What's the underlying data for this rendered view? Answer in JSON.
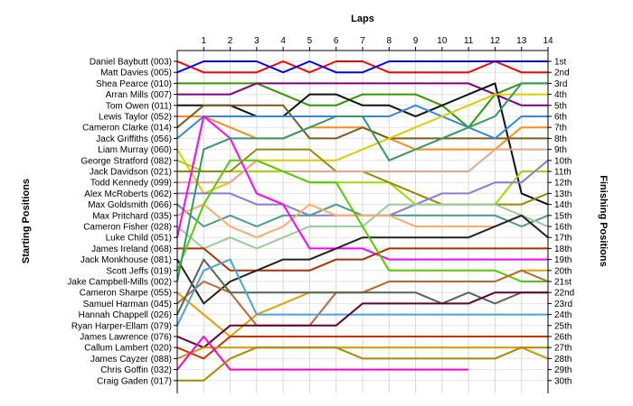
{
  "chart_data": {
    "type": "line",
    "xlabel": "Laps",
    "ylabel_left": "Starting Positions",
    "ylabel_right": "Finishing Positions",
    "laps": [
      1,
      2,
      3,
      4,
      5,
      6,
      7,
      8,
      9,
      10,
      11,
      12,
      13,
      14
    ],
    "finishing_labels": [
      "1st",
      "2nd",
      "3rd",
      "4th",
      "5th",
      "6th",
      "7th",
      "8th",
      "9th",
      "10th",
      "11th",
      "12th",
      "13th",
      "14th",
      "15th",
      "16th",
      "17th",
      "18th",
      "19th",
      "20th",
      "21st",
      "22nd",
      "23rd",
      "24th",
      "25th",
      "26th",
      "27th",
      "28th",
      "29th",
      "30th"
    ],
    "grid": true,
    "series": [
      {
        "name": "Daniel Baybutt (003)",
        "color": "#ff0000",
        "positions": [
          1,
          2,
          2,
          2,
          1,
          2,
          1,
          1,
          2,
          2,
          2,
          2,
          1,
          2,
          2
        ]
      },
      {
        "name": "Matt Davies (005)",
        "color": "#0000ff",
        "positions": [
          2,
          1,
          1,
          1,
          2,
          1,
          2,
          2,
          1,
          1,
          1,
          1,
          1,
          1,
          1
        ]
      },
      {
        "name": "Shea Pearce (010)",
        "color": "#339900",
        "positions": [
          3,
          3,
          3,
          3,
          4,
          5,
          5,
          4,
          4,
          4,
          5,
          7,
          4,
          3,
          3
        ]
      },
      {
        "name": "Arran Mills (007)",
        "color": "#800080",
        "positions": [
          4,
          4,
          4,
          3,
          3,
          3,
          3,
          3,
          3,
          3,
          3,
          3,
          4,
          5,
          5
        ]
      },
      {
        "name": "Tom Owen (011)",
        "color": "#111111",
        "positions": [
          5,
          5,
          5,
          6,
          6,
          4,
          4,
          5,
          5,
          6,
          5,
          4,
          3,
          13,
          14
        ]
      },
      {
        "name": "Lewis Taylor (052)",
        "color": "#ff8c1a",
        "positions": [
          6,
          6,
          7,
          8,
          8,
          7,
          7,
          7,
          8,
          9,
          9,
          9,
          9,
          7,
          7
        ]
      },
      {
        "name": "Cameron Clarke (014)",
        "color": "#7a5c1e",
        "positions": [
          7,
          5,
          5,
          5,
          5,
          8,
          8,
          7,
          8,
          8,
          8,
          8,
          8,
          8,
          8
        ]
      },
      {
        "name": "Jack Griffiths (056)",
        "color": "#3388dd",
        "positions": [
          8,
          6,
          6,
          6,
          6,
          6,
          6,
          6,
          6,
          5,
          6,
          7,
          8,
          6,
          6
        ]
      },
      {
        "name": "Liam Murray (060)",
        "color": "#ddcc00",
        "positions": [
          9,
          13,
          12,
          10,
          10,
          10,
          10,
          9,
          8,
          7,
          6,
          5,
          4,
          4,
          4
        ]
      },
      {
        "name": "George Stratford (082)",
        "color": "#99dd00",
        "positions": [
          10,
          11,
          11,
          11,
          11,
          12,
          12,
          12,
          12,
          14,
          14,
          14,
          14,
          11,
          11
        ]
      },
      {
        "name": "Jack Davidson (021)",
        "color": "#998800",
        "positions": [
          11,
          11,
          11,
          9,
          9,
          9,
          11,
          11,
          12,
          13,
          14,
          14,
          14,
          14,
          13
        ]
      },
      {
        "name": "Todd Kennedy (099)",
        "color": "#e8a38a",
        "positions": [
          12,
          12,
          12,
          10,
          11,
          11,
          11,
          11,
          11,
          11,
          11,
          11,
          9,
          9,
          9
        ]
      },
      {
        "name": "Alex McRoberts (062)",
        "color": "#8e7ad1",
        "positions": [
          13,
          13,
          13,
          14,
          14,
          15,
          15,
          15,
          15,
          14,
          13,
          13,
          12,
          12,
          10
        ]
      },
      {
        "name": "Max Goldsmith (066)",
        "color": "#4a9a8f",
        "positions": [
          14,
          16,
          15,
          16,
          15,
          15,
          14,
          15,
          15,
          15,
          15,
          15,
          15,
          16,
          15
        ]
      },
      {
        "name": "Max Pritchard (035)",
        "color": "#ffaa66",
        "positions": [
          15,
          14,
          16,
          17,
          16,
          14,
          15,
          15,
          15,
          16,
          16,
          16,
          16,
          15,
          16
        ]
      },
      {
        "name": "Cameron Fisher (028)",
        "color": "#9acc99",
        "positions": [
          16,
          18,
          17,
          18,
          17,
          16,
          16,
          16,
          14,
          14,
          14,
          14,
          14,
          15,
          16
        ]
      },
      {
        "name": "Luke Child (051)",
        "color": "#ff00ff",
        "positions": [
          17,
          6,
          8,
          13,
          14,
          18,
          18,
          18,
          19,
          19,
          19,
          19,
          19,
          19,
          19
        ]
      },
      {
        "name": "James Ireland (068)",
        "color": "#aa3300",
        "positions": [
          18,
          18,
          20,
          20,
          20,
          20,
          19,
          19,
          18,
          18,
          18,
          18,
          18,
          18,
          18
        ]
      },
      {
        "name": "Jack Monkhouse (081)",
        "color": "#222222",
        "positions": [
          19,
          23,
          21,
          20,
          19,
          19,
          18,
          17,
          17,
          17,
          17,
          17,
          16,
          15,
          17
        ]
      },
      {
        "name": "Scott Jeffs (019)",
        "color": "#55cc00",
        "positions": [
          20,
          14,
          10,
          10,
          11,
          12,
          12,
          16,
          20,
          20,
          20,
          20,
          20,
          21,
          21
        ]
      },
      {
        "name": "Jake Campbell-Mills (002)",
        "color": "#339966",
        "positions": [
          21,
          9,
          8,
          8,
          8,
          7,
          6,
          6,
          10,
          9,
          8,
          7,
          6,
          3,
          3
        ]
      },
      {
        "name": "Cameron Sharpe (055)",
        "color": "#e5a000",
        "positions": [
          22,
          24,
          26,
          24,
          23,
          22,
          22,
          22,
          21,
          21,
          21,
          21,
          21,
          20,
          20
        ]
      },
      {
        "name": "Samuel Harman (045)",
        "color": "#bb6633",
        "positions": [
          23,
          21,
          22,
          25,
          25,
          25,
          22,
          22,
          21,
          21,
          21,
          21,
          21,
          20,
          21
        ]
      },
      {
        "name": "Hannah Chappell (026)",
        "color": "#556655",
        "positions": [
          24,
          19,
          22,
          22,
          22,
          22,
          22,
          22,
          22,
          22,
          23,
          22,
          23,
          22,
          22
        ]
      },
      {
        "name": "Ryan Harper-Ellam (079)",
        "color": "#4aa3df",
        "positions": [
          25,
          20,
          19,
          24,
          24,
          24,
          24,
          24,
          24,
          24,
          24,
          24,
          24,
          24,
          24
        ]
      },
      {
        "name": "James Lawrence (076)",
        "color": "#660033",
        "positions": [
          26,
          27,
          25,
          25,
          25,
          25,
          25,
          23,
          23,
          23,
          23,
          23,
          22,
          22,
          22
        ]
      },
      {
        "name": "Callum Lambert (020)",
        "color": "#cc3300",
        "positions": [
          27,
          28,
          26,
          26,
          26,
          26,
          26,
          26,
          26,
          26,
          26,
          26,
          26,
          26,
          26
        ]
      },
      {
        "name": "James Cayzer (088)",
        "color": "#cc9900",
        "positions": [
          28,
          27,
          27,
          27,
          27,
          27,
          27,
          27,
          27,
          27,
          27,
          27,
          27,
          27,
          28
        ]
      },
      {
        "name": "Chris Goffin (032)",
        "color": "#ff00cc",
        "positions": [
          29,
          26,
          29,
          29,
          29,
          29,
          29,
          29,
          29,
          29,
          29,
          29,
          null,
          null,
          null
        ]
      },
      {
        "name": "Craig Gaden (017)",
        "color": "#aa8800",
        "positions": [
          30,
          30,
          28,
          27,
          27,
          27,
          27,
          28,
          28,
          28,
          28,
          28,
          28,
          27,
          27
        ]
      }
    ]
  }
}
